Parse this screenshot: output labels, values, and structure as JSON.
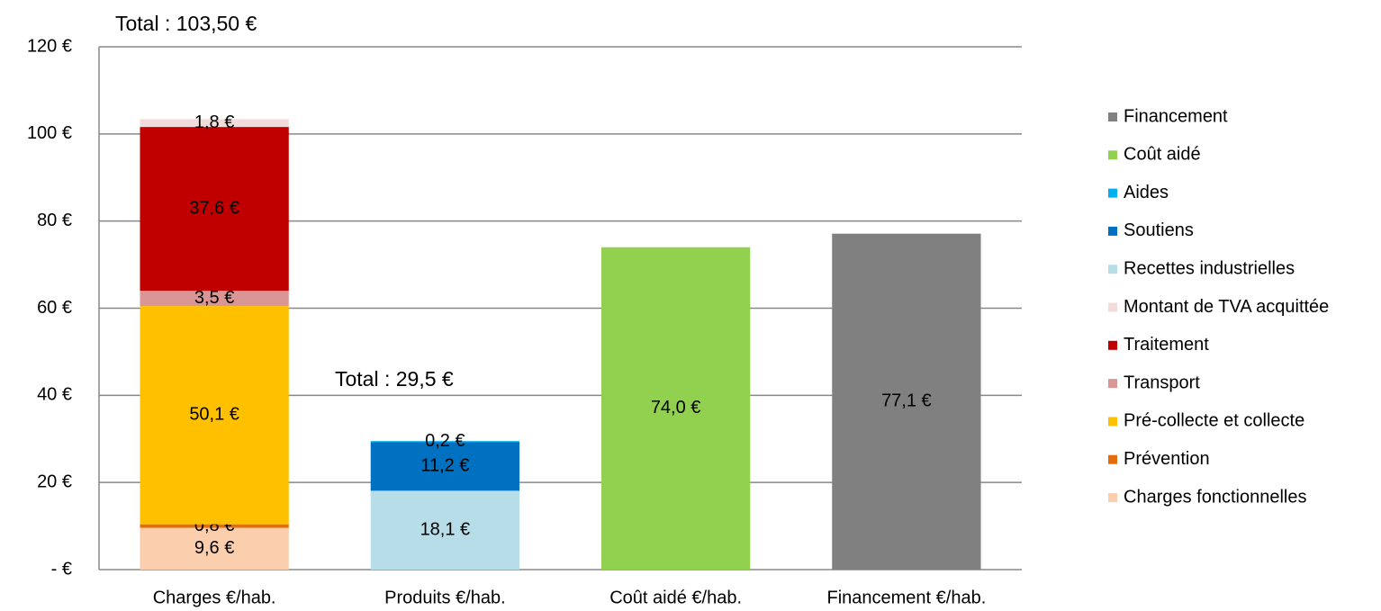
{
  "chart_data": {
    "type": "stacked_bar",
    "categories": [
      "Charges €/hab.",
      "Produits €/hab.",
      "Coût aidé €/hab.",
      "Financement €/hab."
    ],
    "series": [
      {
        "name": "Charges fonctionnelles",
        "color": "#fbcfae",
        "values": [
          9.6,
          null,
          null,
          null
        ],
        "value_labels": [
          "9,6 €",
          null,
          null,
          null
        ]
      },
      {
        "name": "Prévention",
        "color": "#e46c0a",
        "values": [
          0.8,
          null,
          null,
          null
        ],
        "value_labels": [
          "0,8 €",
          null,
          null,
          null
        ]
      },
      {
        "name": "Pré-collecte et collecte",
        "color": "#ffc000",
        "values": [
          50.1,
          null,
          null,
          null
        ],
        "value_labels": [
          "50,1 €",
          null,
          null,
          null
        ]
      },
      {
        "name": "Transport",
        "color": "#d99694",
        "values": [
          3.5,
          null,
          null,
          null
        ],
        "value_labels": [
          "3,5 €",
          null,
          null,
          null
        ]
      },
      {
        "name": "Traitement",
        "color": "#c00000",
        "values": [
          37.6,
          null,
          null,
          null
        ],
        "value_labels": [
          "37,6 €",
          null,
          null,
          null
        ]
      },
      {
        "name": "Montant de TVA acquittée",
        "color": "#f2dcdb",
        "values": [
          1.8,
          null,
          null,
          null
        ],
        "value_labels": [
          "1,8 €",
          null,
          null,
          null
        ]
      },
      {
        "name": "Recettes industrielles",
        "color": "#b7dde8",
        "values": [
          null,
          18.1,
          null,
          null
        ],
        "value_labels": [
          null,
          "18,1 €",
          null,
          null
        ]
      },
      {
        "name": "Soutiens",
        "color": "#0070c0",
        "values": [
          null,
          11.2,
          null,
          null
        ],
        "value_labels": [
          null,
          "11,2 €",
          null,
          null
        ]
      },
      {
        "name": "Aides",
        "color": "#00b0f0",
        "values": [
          null,
          0.2,
          null,
          null
        ],
        "value_labels": [
          null,
          "0,2 €",
          null,
          null
        ]
      },
      {
        "name": "Coût aidé",
        "color": "#92d050",
        "values": [
          null,
          null,
          74.0,
          null
        ],
        "value_labels": [
          null,
          null,
          "74,0 €",
          null
        ]
      },
      {
        "name": "Financement",
        "color": "#808080",
        "values": [
          null,
          null,
          null,
          77.1
        ],
        "value_labels": [
          null,
          null,
          null,
          "77,1 €"
        ]
      }
    ],
    "annotations": [
      "Total : 103,50  €",
      "Total : 29,5 €"
    ],
    "ylim": [
      0,
      120
    ],
    "yticks": [
      {
        "value": 0,
        "label": "-   €"
      },
      {
        "value": 20,
        "label": "20 €"
      },
      {
        "value": 40,
        "label": "40 €"
      },
      {
        "value": 60,
        "label": "60 €"
      },
      {
        "value": 80,
        "label": "80 €"
      },
      {
        "value": 100,
        "label": "100 €"
      },
      {
        "value": 120,
        "label": "120 €"
      }
    ],
    "grid": true,
    "legend": "right"
  }
}
